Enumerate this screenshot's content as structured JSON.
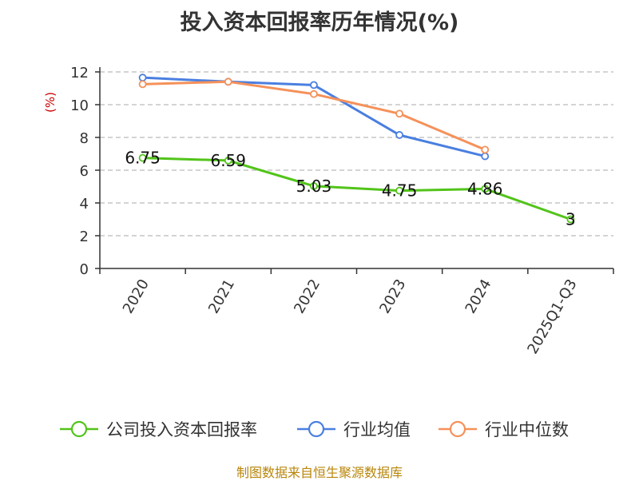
{
  "title": "投入资本回报率历年情况(%)",
  "source": "制图数据来自恒生聚源数据库",
  "chart_data": {
    "type": "line",
    "title": "投入资本回报率历年情况(%)",
    "ylabel": "(%)",
    "ylim": [
      0,
      12
    ],
    "yticks": [
      0,
      2,
      4,
      6,
      8,
      10,
      12
    ],
    "categories": [
      "2020",
      "2021",
      "2022",
      "2023",
      "2024",
      "2025Q1-Q3"
    ],
    "grid": "horizontal-dashed",
    "legend_position": "bottom",
    "series": [
      {
        "name": "公司投入资本回报率",
        "color": "#52c41a",
        "values": [
          6.75,
          6.59,
          5.03,
          4.75,
          4.86,
          3
        ],
        "labels": [
          "6.75",
          "6.59",
          "5.03",
          "4.75",
          "4.86",
          "3"
        ]
      },
      {
        "name": "行业均值",
        "color": "#4a7fe0",
        "values": [
          11.65,
          11.4,
          11.2,
          8.15,
          6.85,
          null
        ]
      },
      {
        "name": "行业中位数",
        "color": "#f5915a",
        "values": [
          11.25,
          11.4,
          10.65,
          9.45,
          7.25,
          null
        ]
      }
    ]
  }
}
